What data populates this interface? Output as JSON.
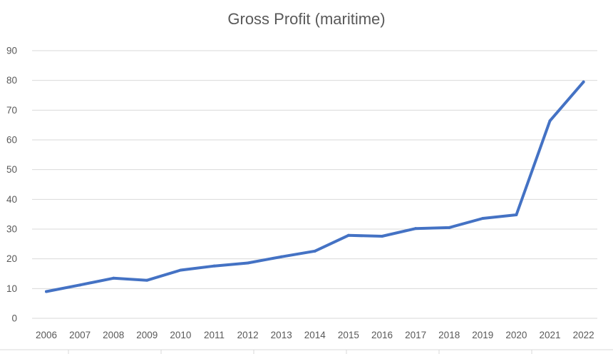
{
  "chart_data": {
    "type": "line",
    "title": "Gross Profit (maritime)",
    "xlabel": "",
    "ylabel": "",
    "categories": [
      "2006",
      "2007",
      "2008",
      "2009",
      "2010",
      "2011",
      "2012",
      "2013",
      "2014",
      "2015",
      "2016",
      "2017",
      "2018",
      "2019",
      "2020",
      "2021",
      "2022"
    ],
    "series": [
      {
        "values": [
          9.0,
          11.2,
          13.5,
          12.8,
          16.2,
          17.6,
          18.6,
          20.7,
          22.6,
          27.9,
          27.6,
          30.2,
          30.5,
          33.6,
          34.8,
          66.4,
          79.5
        ]
      }
    ],
    "ylim": [
      0,
      90
    ],
    "yticks": [
      "0",
      "10",
      "20",
      "30",
      "40",
      "50",
      "60",
      "70",
      "80",
      "90"
    ],
    "grid": true,
    "line_color": "#4472c4",
    "grid_color": "#d9d9d9"
  }
}
